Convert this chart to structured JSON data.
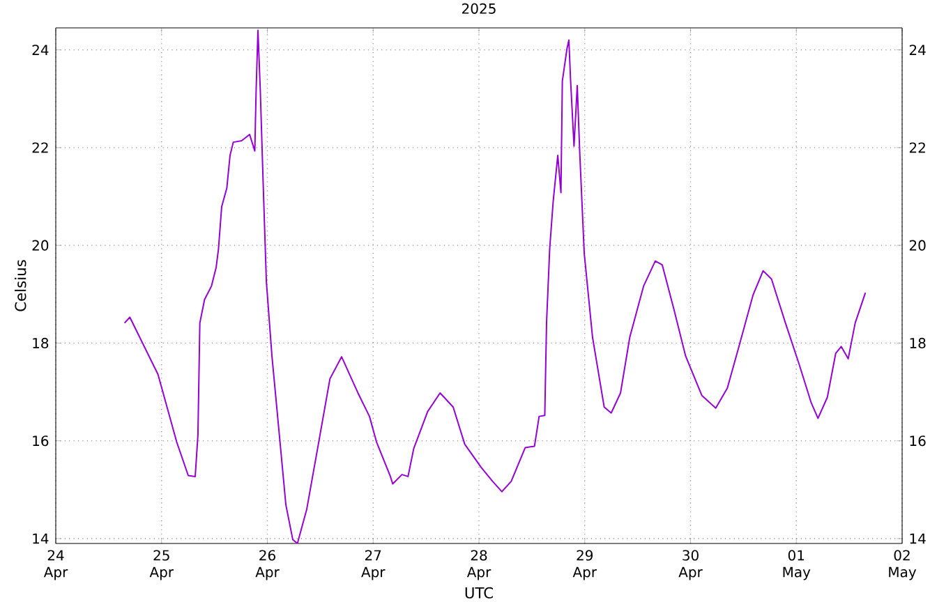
{
  "chart_data": {
    "type": "line",
    "title": "2025",
    "xlabel": "UTC",
    "ylabel": "Celsius",
    "grid": true,
    "xlim": [
      "2025-04-24",
      "2025-05-02"
    ],
    "xticks": [
      {
        "value": "2025-04-24",
        "label": "24 Apr"
      },
      {
        "value": "2025-04-25",
        "label": "25 Apr"
      },
      {
        "value": "2025-04-26",
        "label": "26 Apr"
      },
      {
        "value": "2025-04-27",
        "label": "27 Apr"
      },
      {
        "value": "2025-04-28",
        "label": "28 Apr"
      },
      {
        "value": "2025-04-29",
        "label": "29 Apr"
      },
      {
        "value": "2025-04-30",
        "label": "30 Apr"
      },
      {
        "value": "2025-05-01",
        "label": "01 May"
      },
      {
        "value": "2025-05-02",
        "label": "02 May"
      }
    ],
    "ylim": [
      13.9,
      24.45
    ],
    "yticks": [
      14,
      16,
      18,
      20,
      22,
      24
    ],
    "y2lim": [
      13.9,
      24.45
    ],
    "y2ticks": [
      14,
      16,
      18,
      20,
      22,
      24
    ],
    "x": [
      "2025-04-24T15:36",
      "2025-04-24T16:48",
      "2025-04-24T23:11",
      "2025-04-25T03:25",
      "2025-04-25T06:03",
      "2025-04-25T07:38",
      "2025-04-25T08:15",
      "2025-04-25T08:41",
      "2025-04-25T09:45",
      "2025-04-25T11:20",
      "2025-04-25T12:23",
      "2025-04-25T12:55",
      "2025-04-25T13:38",
      "2025-04-25T14:48",
      "2025-04-25T15:32",
      "2025-04-25T16:16",
      "2025-04-25T18:10",
      "2025-04-25T19:58",
      "2025-04-25T21:09",
      "2025-04-25T21:27",
      "2025-04-25T21:52",
      "2025-04-25T22:24",
      "2025-04-25T23:02",
      "2025-04-25T23:46",
      "2025-04-26T01:02",
      "2025-04-26T02:37",
      "2025-04-26T04:12",
      "2025-04-26T05:46",
      "2025-04-26T06:49",
      "2025-04-26T08:56",
      "2025-04-26T11:34",
      "2025-04-26T14:12",
      "2025-04-26T16:51",
      "2025-04-26T20:33",
      "2025-04-26T23:10",
      "2025-04-27T00:45",
      "2025-04-27T03:55",
      "2025-04-27T04:26",
      "2025-04-27T06:32",
      "2025-04-27T07:55",
      "2025-04-27T09:12",
      "2025-04-27T12:22",
      "2025-04-27T15:11",
      "2025-04-27T18:09",
      "2025-04-27T20:47",
      "2025-04-28T00:29",
      "2025-04-28T03:06",
      "2025-04-28T05:12",
      "2025-04-28T07:19",
      "2025-04-28T10:29",
      "2025-04-28T12:36",
      "2025-04-28T13:39",
      "2025-04-28T14:56",
      "2025-04-28T15:20",
      "2025-04-28T16:03",
      "2025-04-28T16:50",
      "2025-04-28T17:53",
      "2025-04-28T18:36",
      "2025-04-28T18:55",
      "2025-04-28T19:59",
      "2025-04-28T20:24",
      "2025-04-28T20:48",
      "2025-04-28T21:34",
      "2025-04-28T22:18",
      "2025-04-28T22:51",
      "2025-04-28T23:53",
      "2025-04-29T01:46",
      "2025-04-29T04:25",
      "2025-04-29T06:00",
      "2025-04-29T08:07",
      "2025-04-29T10:13",
      "2025-04-29T13:22",
      "2025-04-29T16:00",
      "2025-04-29T17:35",
      "2025-04-29T20:14",
      "2025-04-29T22:52",
      "2025-04-30T02:33",
      "2025-04-30T05:43",
      "2025-04-30T08:21",
      "2025-04-30T10:59",
      "2025-04-30T14:10",
      "2025-04-30T16:28",
      "2025-04-30T18:22",
      "2025-04-30T21:32",
      "2025-05-01T00:42",
      "2025-05-01T03:20",
      "2025-05-01T04:55",
      "2025-05-01T07:02",
      "2025-05-01T08:56",
      "2025-05-01T10:11",
      "2025-05-01T11:46",
      "2025-05-01T13:21",
      "2025-05-01T15:40"
    ],
    "series": [
      {
        "color": "#9400d3",
        "values": [
          18.41,
          18.53,
          17.36,
          15.98,
          15.29,
          15.27,
          16.12,
          18.41,
          18.89,
          19.17,
          19.55,
          19.93,
          20.79,
          21.17,
          21.84,
          22.11,
          22.14,
          22.27,
          21.93,
          23.17,
          24.4,
          23.17,
          21.31,
          19.27,
          17.74,
          16.22,
          14.69,
          13.98,
          13.9,
          14.6,
          15.93,
          17.27,
          17.72,
          16.98,
          16.5,
          15.98,
          15.27,
          15.12,
          15.31,
          15.27,
          15.84,
          16.6,
          16.98,
          16.69,
          15.93,
          15.46,
          15.17,
          14.96,
          15.17,
          15.86,
          15.89,
          16.5,
          16.52,
          18.41,
          19.93,
          20.89,
          21.84,
          21.08,
          23.36,
          24.03,
          24.2,
          23.36,
          22.03,
          23.27,
          21.93,
          19.84,
          18.12,
          16.69,
          16.57,
          16.98,
          18.12,
          19.17,
          19.68,
          19.6,
          18.69,
          17.74,
          16.93,
          16.67,
          17.08,
          17.93,
          18.98,
          19.48,
          19.31,
          18.41,
          17.55,
          16.79,
          16.46,
          16.89,
          17.79,
          17.93,
          17.68,
          18.41,
          19.03
        ]
      }
    ]
  }
}
